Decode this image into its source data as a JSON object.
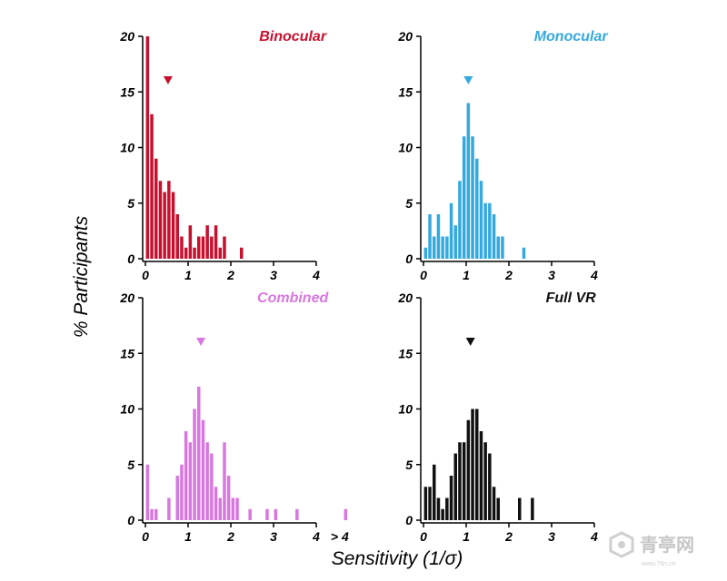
{
  "chart_data": {
    "type": "bar",
    "layout": "2x2 small multiples",
    "ylabel": "% Participants",
    "xlabel": "Sensitivity (1/σ)",
    "xlim": [
      0,
      4
    ],
    "ylim": [
      0,
      20
    ],
    "x_ticks": [
      "0",
      "1",
      "2",
      "3",
      "4"
    ],
    "y_ticks": [
      "0",
      "5",
      "10",
      "15",
      "20"
    ],
    "bin_width": 0.1,
    "panels": [
      {
        "title": "Binocular",
        "color": "#c8102e",
        "mean_marker": 0.53,
        "bin_starts": [
          0,
          0.1,
          0.2,
          0.3,
          0.4,
          0.5,
          0.6,
          0.7,
          0.8,
          0.9,
          1.0,
          1.1,
          1.2,
          1.3,
          1.4,
          1.5,
          1.6,
          1.7,
          1.8,
          2.2
        ],
        "values": [
          20,
          13,
          9,
          7,
          6,
          7,
          6,
          4,
          2,
          1,
          3,
          1,
          2,
          2,
          3,
          2,
          3,
          1,
          2,
          1
        ]
      },
      {
        "title": "Monocular",
        "color": "#34a9e0",
        "mean_marker": 1.05,
        "bin_starts": [
          0,
          0.1,
          0.2,
          0.3,
          0.4,
          0.5,
          0.6,
          0.7,
          0.8,
          0.9,
          1.0,
          1.1,
          1.2,
          1.3,
          1.4,
          1.5,
          1.6,
          1.7,
          1.8,
          2.3
        ],
        "values": [
          1,
          4,
          2,
          4,
          2,
          2,
          5,
          3,
          7,
          11,
          14,
          11,
          9,
          7,
          5,
          5,
          4,
          2,
          2,
          1
        ]
      },
      {
        "title": "Combined",
        "color": "#d977e0",
        "mean_marker": 1.3,
        "bin_starts": [
          0,
          0.1,
          0.2,
          0.5,
          0.7,
          0.8,
          0.9,
          1.0,
          1.1,
          1.2,
          1.3,
          1.4,
          1.5,
          1.6,
          1.7,
          1.8,
          1.9,
          2.0,
          2.1,
          2.4,
          2.8,
          3.0,
          3.5
        ],
        "values": [
          5,
          1,
          1,
          2,
          4,
          5,
          8,
          7,
          10,
          12,
          9,
          7,
          6,
          3,
          2,
          7,
          4,
          2,
          2,
          1,
          1,
          1,
          1
        ],
        "overflow_label": "> 4",
        "overflow_value": 1
      },
      {
        "title": "Full VR",
        "color": "#111111",
        "mean_marker": 1.1,
        "bin_starts": [
          0,
          0.1,
          0.2,
          0.3,
          0.4,
          0.5,
          0.6,
          0.7,
          0.8,
          0.9,
          1.0,
          1.1,
          1.2,
          1.3,
          1.4,
          1.5,
          1.6,
          1.7,
          2.2,
          2.5
        ],
        "values": [
          3,
          3,
          5,
          2,
          1,
          2,
          4,
          6,
          7,
          7,
          9,
          10,
          10,
          8,
          7,
          6,
          3,
          2,
          2,
          2
        ]
      }
    ]
  },
  "watermark": {
    "text": "青亭网",
    "subtext": "www.7tin.cn"
  }
}
